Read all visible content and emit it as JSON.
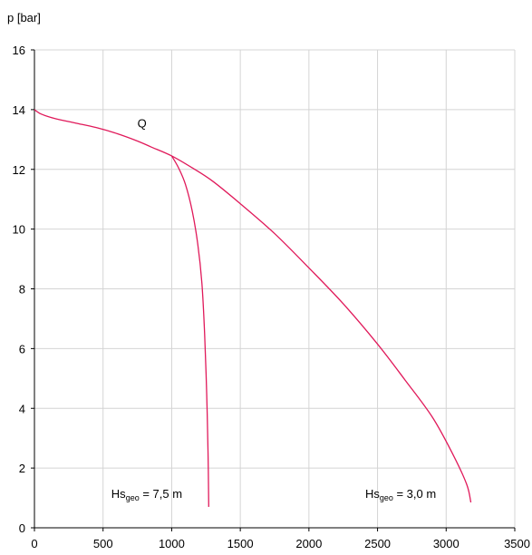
{
  "chart_data": {
    "type": "line",
    "ylabel": "p [bar]",
    "xlabel": "",
    "xlim": [
      0,
      3500
    ],
    "ylim": [
      0,
      16
    ],
    "x_ticks": [
      0,
      500,
      1000,
      1500,
      2000,
      2500,
      3000,
      3500
    ],
    "y_ticks": [
      0,
      2,
      4,
      6,
      8,
      10,
      12,
      14,
      16
    ],
    "grid": true,
    "legend": "none",
    "line_color": "#e0195a",
    "series": [
      {
        "name": "",
        "values": [
          [
            0,
            14.0
          ],
          [
            50,
            13.85
          ],
          [
            150,
            13.7
          ],
          [
            300,
            13.55
          ],
          [
            450,
            13.4
          ],
          [
            600,
            13.2
          ],
          [
            750,
            12.95
          ],
          [
            850,
            12.75
          ],
          [
            1000,
            12.45
          ],
          [
            1150,
            12.05
          ],
          [
            1300,
            11.6
          ],
          [
            1500,
            10.85
          ],
          [
            1750,
            9.85
          ],
          [
            2000,
            8.7
          ],
          [
            2250,
            7.5
          ],
          [
            2500,
            6.15
          ],
          [
            2700,
            4.95
          ],
          [
            2900,
            3.7
          ],
          [
            3050,
            2.45
          ],
          [
            3150,
            1.45
          ],
          [
            3180,
            0.85
          ]
        ]
      },
      {
        "name": "",
        "values": [
          [
            1000,
            12.45
          ],
          [
            1050,
            12.05
          ],
          [
            1100,
            11.5
          ],
          [
            1150,
            10.6
          ],
          [
            1190,
            9.5
          ],
          [
            1220,
            8.2
          ],
          [
            1240,
            6.5
          ],
          [
            1255,
            4.5
          ],
          [
            1265,
            2.5
          ],
          [
            1270,
            0.7
          ]
        ]
      }
    ],
    "annotations": [
      {
        "id": "q",
        "text": "Q",
        "x": 750,
        "y": 13.4
      },
      {
        "id": "hs75",
        "main": "Hs",
        "sub": "geo",
        "rest": " = 7,5 m",
        "x": 560,
        "y": 1.0
      },
      {
        "id": "hs30",
        "main": "Hs",
        "sub": "geo",
        "rest": " = 3,0 m",
        "x": 2410,
        "y": 1.0
      }
    ]
  }
}
